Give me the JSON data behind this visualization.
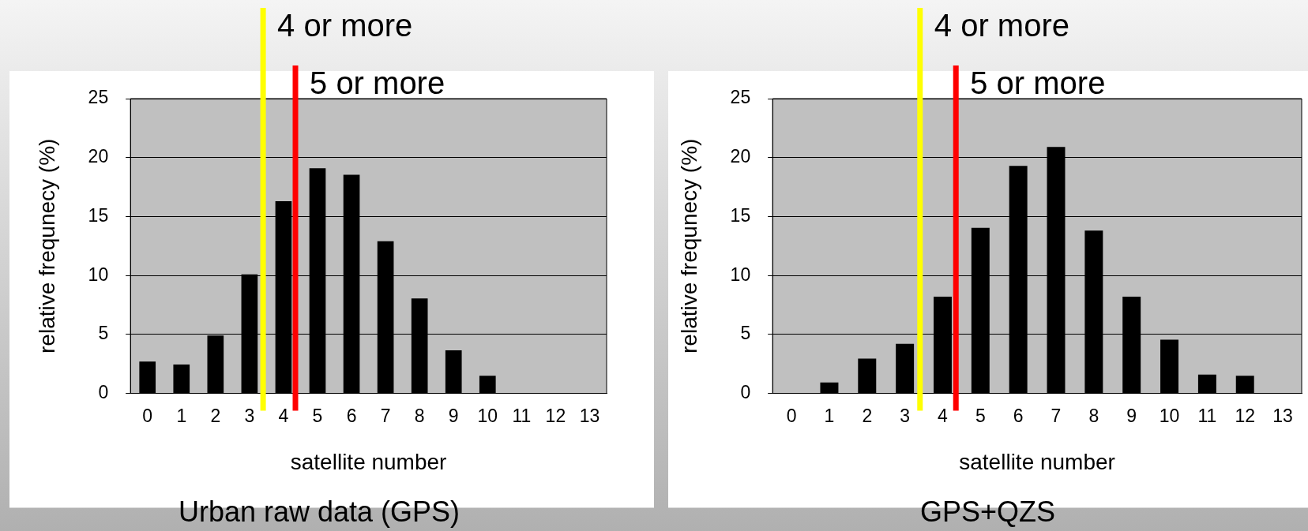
{
  "chart_data": [
    {
      "type": "bar",
      "title": "Urban raw data (GPS)",
      "xlabel": "satellite number",
      "ylabel": "relative frequnecy (%)",
      "x": [
        0,
        1,
        2,
        3,
        4,
        5,
        6,
        7,
        8,
        9,
        10,
        11,
        12,
        13
      ],
      "values": [
        2.7,
        2.45,
        4.9,
        10.1,
        16.3,
        19.1,
        18.55,
        12.9,
        8.05,
        3.65,
        1.5,
        0,
        0,
        0
      ],
      "color": "#000000",
      "xlim": [
        -0.5,
        13.5
      ],
      "xticks": [
        0,
        1,
        2,
        3,
        4,
        5,
        6,
        7,
        8,
        9,
        10,
        11,
        12,
        13
      ],
      "ylim": [
        0,
        25
      ],
      "yticks": [
        0,
        5,
        10,
        15,
        20,
        25
      ],
      "grid": "y",
      "legend": false,
      "ref_lines": [
        {
          "axis": "x",
          "value": 3.4,
          "label": "4 or more",
          "color": "#ffff00"
        },
        {
          "axis": "x",
          "value": 4.35,
          "label": "5 or more",
          "color": "#ff0000"
        }
      ]
    },
    {
      "type": "bar",
      "title": "GPS+QZS",
      "xlabel": "satellite number",
      "ylabel": "relative frequnecy (%)",
      "x": [
        0,
        1,
        2,
        3,
        4,
        5,
        6,
        7,
        8,
        9,
        10,
        11,
        12,
        13
      ],
      "values": [
        0,
        0.93,
        2.95,
        4.2,
        8.2,
        14.05,
        19.3,
        20.9,
        13.8,
        8.2,
        4.55,
        1.6,
        1.5,
        0
      ],
      "color": "#000000",
      "xlim": [
        -0.5,
        13.5
      ],
      "xticks": [
        0,
        1,
        2,
        3,
        4,
        5,
        6,
        7,
        8,
        9,
        10,
        11,
        12,
        13
      ],
      "ylim": [
        0,
        25
      ],
      "yticks": [
        0,
        5,
        10,
        15,
        20,
        25
      ],
      "grid": "y",
      "legend": false,
      "ref_lines": [
        {
          "axis": "x",
          "value": 3.4,
          "label": "4 or more",
          "color": "#ffff00"
        },
        {
          "axis": "x",
          "value": 4.35,
          "label": "5 or more",
          "color": "#ff0000"
        }
      ]
    }
  ]
}
